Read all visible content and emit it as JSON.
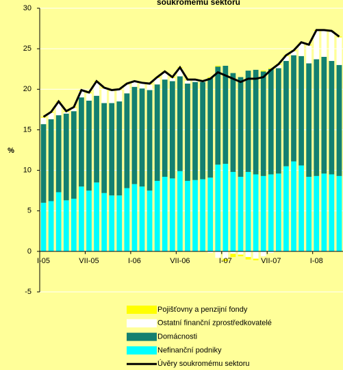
{
  "chart_data": {
    "type": "bar",
    "title": "soukromému sektoru",
    "ylabel": "%",
    "categories": [
      "I-05",
      null,
      null,
      null,
      null,
      null,
      "VII-05",
      null,
      null,
      null,
      null,
      null,
      "I-06",
      null,
      null,
      null,
      null,
      null,
      "VII-06",
      null,
      null,
      null,
      null,
      null,
      "I-07",
      null,
      null,
      null,
      null,
      null,
      "VII-07",
      null,
      null,
      null,
      null,
      null,
      "I-08",
      null,
      null,
      null
    ],
    "ylim": [
      -5,
      30
    ],
    "yticks": [
      -5,
      0,
      5,
      10,
      15,
      20,
      25,
      30
    ],
    "grid": true,
    "legend": "bottom",
    "stacked": true,
    "series": [
      {
        "name": "Pojišťovny a penzijní fondy",
        "color": "#ffff00",
        "values": [
          0.1,
          0.1,
          0.1,
          0.1,
          0.1,
          0.1,
          0.1,
          0.1,
          0.1,
          0.1,
          0.1,
          0.1,
          0.1,
          0.1,
          0.1,
          0.1,
          0.1,
          0.1,
          0.1,
          0.1,
          0.1,
          0.1,
          0.1,
          0.1,
          -0.3,
          -0.4,
          -0.2,
          -0.3,
          -0.2,
          0.1,
          0.1,
          0.1,
          0.1,
          0.1,
          0.1,
          0.1,
          0.1,
          0.1,
          0.1,
          0.1
        ]
      },
      {
        "name": "Ostatní finanční zprostředkovatelé",
        "color": "#ffffff",
        "values": [
          0.8,
          0.8,
          1.6,
          0.2,
          0.4,
          0.8,
          0.9,
          1.7,
          1.8,
          1.5,
          1.4,
          1.1,
          0.6,
          0.6,
          0.7,
          0.8,
          0.9,
          0.4,
          1.0,
          0.4,
          0.2,
          0.1,
          -0.2,
          -0.8,
          -0.9,
          -0.3,
          -0.4,
          -0.7,
          -0.9,
          -0.6,
          -0.2,
          0.4,
          0.6,
          0.5,
          1.6,
          2.2,
          3.5,
          3.2,
          3.6,
          3.4
        ]
      },
      {
        "name": "Domácnosti",
        "color": "#138070",
        "values": [
          9.7,
          10.1,
          9.5,
          10.7,
          10.8,
          11.0,
          11.1,
          10.7,
          11.1,
          11.4,
          11.6,
          11.7,
          12.0,
          12.1,
          12.4,
          11.9,
          12.0,
          12.0,
          11.7,
          12.0,
          12.1,
          12.0,
          12.3,
          12.1,
          12.1,
          12.2,
          12.3,
          12.5,
          12.9,
          12.9,
          13.0,
          13.0,
          13.0,
          13.1,
          13.5,
          14.0,
          14.4,
          14.4,
          14.0,
          13.7
        ]
      },
      {
        "name": "Nefinanční podniky",
        "color": "#00ffff",
        "values": [
          6.0,
          6.2,
          7.3,
          6.3,
          6.5,
          8.0,
          7.5,
          8.5,
          7.2,
          6.9,
          6.9,
          7.8,
          8.3,
          8.0,
          7.5,
          8.7,
          9.2,
          9.0,
          9.9,
          8.7,
          8.8,
          8.9,
          9.1,
          10.7,
          10.8,
          9.8,
          9.2,
          9.8,
          9.5,
          9.3,
          9.5,
          9.6,
          10.5,
          11.1,
          10.6,
          9.2,
          9.3,
          9.6,
          9.5,
          9.3
        ]
      },
      {
        "name": "Úvěry soukromému sektoru",
        "color": "#000000",
        "type": "line",
        "values": [
          16.6,
          17.2,
          18.5,
          17.3,
          17.8,
          19.9,
          19.6,
          21.0,
          20.2,
          19.9,
          20.0,
          20.7,
          21.0,
          20.8,
          20.7,
          21.5,
          22.2,
          21.5,
          22.7,
          21.2,
          21.2,
          21.0,
          21.3,
          22.1,
          21.7,
          21.3,
          20.9,
          21.3,
          21.3,
          21.5,
          22.4,
          23.1,
          24.2,
          24.8,
          25.8,
          25.5,
          27.3,
          27.3,
          27.2,
          26.5
        ]
      }
    ]
  }
}
